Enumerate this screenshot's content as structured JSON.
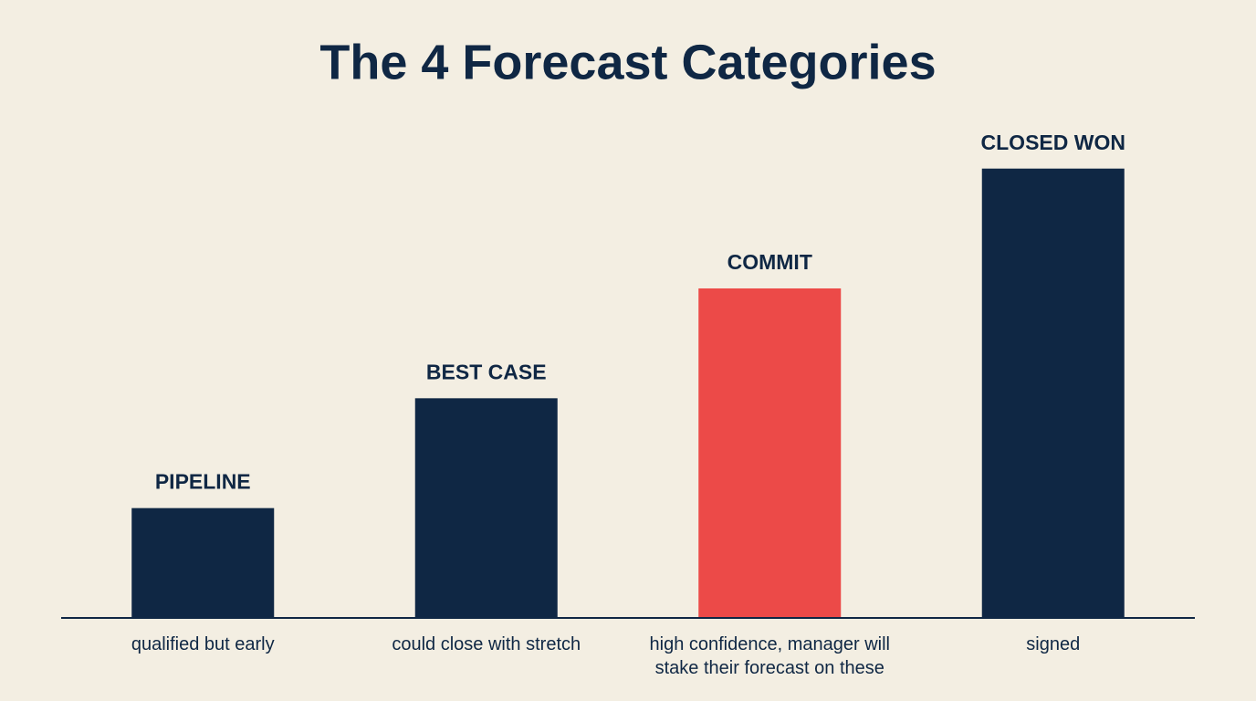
{
  "chart_data": {
    "type": "bar",
    "title": "The 4 Forecast Categories",
    "categories": [
      "PIPELINE",
      "BEST CASE",
      "COMMIT",
      "CLOSED WON"
    ],
    "descriptions": [
      "qualified but early",
      "could close with stretch",
      "high confidence, manager will stake their forecast on these",
      "signed"
    ],
    "values": [
      1.1,
      2.2,
      3.3,
      4.5
    ],
    "colors": [
      "#0f2744",
      "#0f2744",
      "#ec4a48",
      "#0f2744"
    ],
    "ylim": [
      0,
      5
    ]
  }
}
